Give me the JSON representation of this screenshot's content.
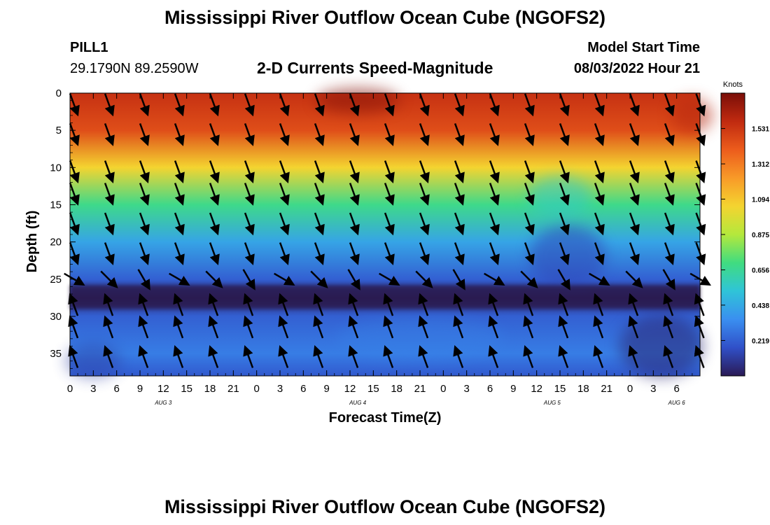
{
  "page": {
    "title": "Mississippi River Outflow Ocean Cube (NGOFS2)",
    "title_repeat": "Mississippi River Outflow Ocean Cube (NGOFS2)"
  },
  "station": {
    "name": "PILL1",
    "coords": "29.1790N  89.2590W"
  },
  "model": {
    "start_label": "Model Start Time",
    "start_value": "08/03/2022 Hour 21"
  },
  "chart_data": {
    "type": "heatmap",
    "title": "2-D Currents Speed-Magnitude",
    "xlabel": "Forecast Time(Z)",
    "ylabel": "Depth (ft)",
    "x_range_hours": [
      0,
      81
    ],
    "ylim": [
      0,
      38
    ],
    "y_inverted": true,
    "x_tick_labels": [
      "0",
      "3",
      "6",
      "9",
      "12",
      "15",
      "18",
      "21",
      "0",
      "3",
      "6",
      "9",
      "12",
      "15",
      "18",
      "21",
      "0",
      "3",
      "6",
      "9",
      "12",
      "15",
      "18",
      "21",
      "0",
      "3",
      "6"
    ],
    "x_date_labels": [
      {
        "text": "AUG 3",
        "at_hour": 12
      },
      {
        "text": "AUG 4",
        "at_hour": 37
      },
      {
        "text": "AUG 5",
        "at_hour": 62
      },
      {
        "text": "AUG 6",
        "at_hour": 78
      }
    ],
    "y_ticks": [
      0,
      5,
      10,
      15,
      20,
      25,
      30,
      35
    ],
    "colorbar": {
      "title": "Knots",
      "range": [
        0,
        1.75
      ],
      "ticks": [
        "1.531",
        "1.312",
        "1.094",
        "0.875",
        "0.656",
        "0.438",
        "0.219"
      ],
      "tick_values": [
        1.531,
        1.312,
        1.094,
        0.875,
        0.656,
        0.438,
        0.219
      ],
      "colors": [
        "#2a1a55",
        "#3050c8",
        "#3a8ff0",
        "#2fc4d8",
        "#40dc80",
        "#b4e83c",
        "#f4d430",
        "#f89a28",
        "#ec5c1c",
        "#c02a10",
        "#7a0e08"
      ]
    },
    "speed_profile_depths_ft": [
      0,
      5,
      10,
      15,
      20,
      25,
      27.5,
      30,
      35,
      38
    ],
    "speed_profile_knots": [
      1.55,
      1.45,
      1.05,
      0.68,
      0.42,
      0.22,
      0.05,
      0.22,
      0.3,
      0.2
    ],
    "vector_rows_depth_ft": [
      1.5,
      5.5,
      10.5,
      13.5,
      17.5,
      21.5,
      25,
      28.5,
      31.5,
      35.5
    ],
    "vector_cols_hours": [
      0.5,
      5,
      9.5,
      14,
      18.5,
      23,
      27.5,
      32,
      36.5,
      41,
      45.5,
      50,
      54.5,
      59,
      63.5,
      68,
      72.5,
      77,
      81
    ],
    "vector_directions_deg": {
      "upper_layers": 160,
      "near_25ft": 135,
      "deep_layers": -20
    }
  }
}
